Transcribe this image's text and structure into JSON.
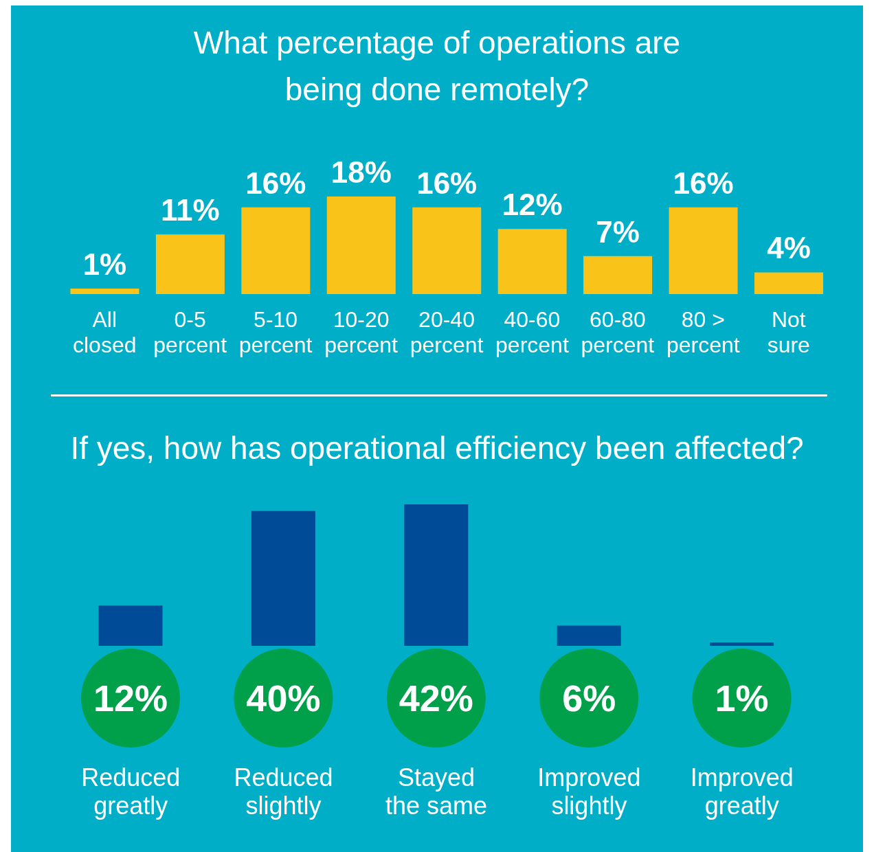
{
  "chart_data": [
    {
      "type": "bar",
      "title": "What percentage of operations are being done remotely?",
      "categories": [
        "All closed",
        "0-5 percent",
        "5-10 percent",
        "10-20 percent",
        "20-40 percent",
        "40-60 percent",
        "60-80 percent",
        "80 > percent",
        "Not sure"
      ],
      "values": [
        1,
        11,
        16,
        18,
        16,
        12,
        7,
        16,
        4
      ],
      "value_labels": [
        "1%",
        "11%",
        "16%",
        "18%",
        "16%",
        "12%",
        "7%",
        "16%",
        "4%"
      ],
      "color": "#f9c31a"
    },
    {
      "type": "bar",
      "title": "If yes, how has operational efficiency been affected?",
      "categories": [
        "Reduced greatly",
        "Reduced slightly",
        "Stayed the same",
        "Improved slightly",
        "Improved greatly"
      ],
      "values": [
        12,
        40,
        42,
        6,
        1
      ],
      "value_labels": [
        "12%",
        "40%",
        "42%",
        "6%",
        "1%"
      ],
      "color": "#004b98"
    }
  ]
}
